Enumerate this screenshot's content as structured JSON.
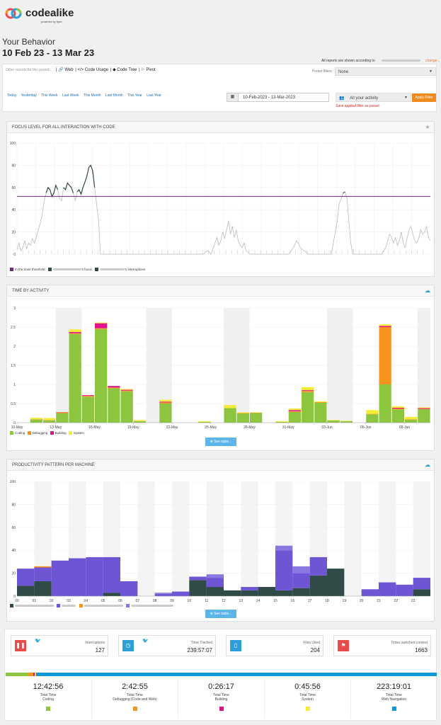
{
  "brand": {
    "name": "codealike",
    "sub": "powered by tipre"
  },
  "page": {
    "title": "Your Behavior",
    "range": "10 Feb 23 - 13 Mar 23",
    "according": "All reports are shown according to",
    "change": "change..."
  },
  "filters": {
    "other_label": "Other reports for this period...",
    "links": [
      "| 🔗 Web",
      "| </> Code Usage",
      "| ◆ Code Tree",
      "| ⚐ Pivot"
    ],
    "preset_label": "Preset filters",
    "preset_value": "None",
    "quick": [
      "Today",
      "Yesterday",
      "This Week",
      "Last Week",
      "This Month",
      "Last Month",
      "This Year",
      "Last Year"
    ],
    "date_range": "10-Feb-2023 - 13-Mar-2023",
    "activity": "All your activity",
    "apply": "Apply Filter",
    "save_preset": "Save applied filter as preset"
  },
  "focus_panel": {
    "title": "FOCUS LEVEL FOR ALL INTERACTION WITH CODE",
    "legend": [
      "In the Zone threshold",
      "'s focus",
      "'s interruptions"
    ]
  },
  "activity_panel": {
    "title": "TIME BY ACTIVITY",
    "see_table": "⊕ See table...",
    "legend": [
      "Coding",
      "Debugging",
      "Building",
      "System"
    ]
  },
  "productivity_panel": {
    "title": "PRODUCTIVITY PATTERN PER MACHINE",
    "see_table": "⊕ See table..."
  },
  "colors": {
    "coding": "#8cc63f",
    "debugging": "#f7941d",
    "building": "#e0138c",
    "system": "#f4ec35",
    "web": "#0f97d8",
    "purple": "#6e55d4",
    "dark": "#2f4a47",
    "threshold": "#6b2a7a"
  },
  "cards": [
    {
      "label": "Interruptions",
      "value": "127",
      "icon": "pause-icon",
      "color": "#e94b4b"
    },
    {
      "label": "Time Tracked",
      "value": "239:57:07",
      "icon": "clock-icon",
      "color": "#2b9fd6"
    },
    {
      "label": "Files Used",
      "value": "204",
      "icon": "file-icon",
      "color": "#2b9fd6"
    },
    {
      "label": "Times switched context",
      "value": "1663",
      "icon": "bookmark-icon",
      "color": "#e94b4b"
    }
  ],
  "totals": [
    {
      "value": "12:42:56",
      "label1": "Total Time",
      "label2": "Coding",
      "color": "#8cc63f"
    },
    {
      "value": "2:42:55",
      "label1": "Total Time",
      "label2": "Debugging (Code and Web)",
      "color": "#f7941d"
    },
    {
      "value": "0:26:17",
      "label1": "Total Time",
      "label2": "Building",
      "color": "#e0138c"
    },
    {
      "value": "0:45:56",
      "label1": "Total Time",
      "label2": "System",
      "color": "#f4ec35"
    },
    {
      "value": "223:19:01",
      "label1": "Total Time",
      "label2": "Web Navigation",
      "color": "#0f97d8"
    }
  ],
  "chart_data": [
    {
      "type": "line",
      "ylim": [
        0,
        100
      ],
      "yticks": [
        0,
        20,
        40,
        60,
        80,
        100
      ],
      "threshold": 52,
      "series": [
        {
          "name": "'s focus",
          "values": [
            4,
            10,
            3,
            6,
            12,
            5,
            10,
            8,
            14,
            10,
            16,
            22,
            28,
            35,
            48,
            55,
            60,
            58,
            52,
            55,
            62,
            58,
            50,
            48,
            60,
            58,
            64,
            62,
            60,
            55,
            48,
            56,
            58,
            54,
            60,
            65,
            70,
            78,
            80,
            75,
            60,
            45,
            30,
            0,
            0,
            0,
            0,
            0,
            0,
            0,
            0,
            0,
            0,
            0,
            0,
            0,
            0,
            0,
            0,
            0,
            0,
            0,
            0,
            0,
            0,
            0,
            0,
            0,
            0,
            0,
            0,
            0,
            0,
            0,
            0,
            0,
            0,
            0,
            0,
            0,
            0,
            0,
            0,
            0,
            0,
            0,
            0,
            0,
            0,
            0,
            0,
            0,
            0,
            0,
            0,
            0,
            0,
            2,
            3,
            2,
            0,
            5,
            10,
            15,
            8,
            12,
            20,
            14,
            22,
            30,
            18,
            25,
            15,
            22,
            12,
            8,
            6,
            10,
            3,
            2,
            0,
            0,
            0,
            0,
            0,
            0,
            0,
            0,
            0,
            0,
            0,
            0,
            0,
            0,
            0,
            0,
            0,
            0,
            0,
            0,
            0,
            2,
            5,
            8,
            12,
            10,
            6,
            4,
            3,
            2,
            0,
            0,
            0,
            0,
            0,
            0,
            0,
            0,
            0,
            0,
            0,
            0,
            0,
            10,
            20,
            30,
            45,
            50,
            55,
            56,
            50,
            30,
            10,
            0,
            0,
            0,
            0,
            0,
            0,
            0,
            0,
            0,
            0,
            0,
            0,
            0,
            0,
            0,
            0,
            3,
            6,
            12,
            18,
            15,
            10,
            15,
            8,
            12,
            20,
            10,
            6,
            14,
            22,
            25,
            18,
            12,
            10,
            14,
            22,
            18,
            20,
            25,
            15,
            12
          ]
        },
        {
          "name": "In the Zone threshold",
          "values": [
            52
          ]
        }
      ]
    },
    {
      "type": "bar",
      "stacked": true,
      "ylim": [
        0,
        3.0
      ],
      "yticks": [
        0,
        0.5,
        1.0,
        1.5,
        2.0,
        2.5,
        3.0
      ],
      "xticks": [
        "10-May",
        "13-May",
        "16-May",
        "19-May",
        "22-May",
        "25-May",
        "28-May",
        "31-May",
        "03-Jun",
        "06-Jun",
        "09-Jun",
        "12-Jun"
      ],
      "series": [
        {
          "name": "Coding",
          "values": [
            0,
            0.08,
            0.06,
            0.25,
            2.32,
            0.68,
            2.45,
            0.9,
            0.82,
            0.04,
            0,
            0.5,
            0,
            0,
            0.02,
            0,
            0.38,
            0.24,
            0.25,
            0,
            0.02,
            0.28,
            0.8,
            0.52,
            0.06,
            0.04,
            0,
            0.22,
            1.0,
            0.35,
            0.08,
            0.35
          ]
        },
        {
          "name": "Debugging",
          "values": [
            0,
            0.01,
            0.01,
            0.01,
            0.02,
            0.02,
            0.02,
            0.02,
            0.02,
            0,
            0,
            0.03,
            0,
            0,
            0,
            0,
            0,
            0.01,
            0.01,
            0,
            0,
            0.02,
            0.03,
            0.02,
            0,
            0,
            0,
            0.01,
            1.5,
            0.02,
            0.01,
            0.01
          ]
        },
        {
          "name": "Building",
          "values": [
            0,
            0,
            0,
            0.01,
            0.03,
            0.02,
            0.13,
            0.04,
            0.02,
            0,
            0,
            0.02,
            0,
            0,
            0,
            0,
            0,
            0,
            0,
            0,
            0,
            0.03,
            0.02,
            0,
            0,
            0,
            0,
            0,
            0.03,
            0.02,
            0,
            0.02
          ]
        },
        {
          "name": "System",
          "values": [
            0,
            0.04,
            0.05,
            0.01,
            0.07,
            0,
            0.02,
            0,
            0.02,
            0.03,
            0,
            0.05,
            0,
            0,
            0.02,
            0,
            0.08,
            0.02,
            0.01,
            0,
            0.02,
            0.04,
            0.08,
            0.02,
            0.01,
            0.01,
            0,
            0.1,
            0.04,
            0.04,
            0.06,
            0.02
          ]
        }
      ]
    },
    {
      "type": "bar",
      "stacked": true,
      "ylim": [
        0,
        100
      ],
      "yticks": [
        0,
        20,
        40,
        60,
        80,
        100
      ],
      "categories": [
        "00",
        "01",
        "02",
        "03",
        "04",
        "05",
        "06",
        "07",
        "08",
        "09",
        "10",
        "11",
        "12",
        "13",
        "14",
        "15",
        "16",
        "17",
        "18",
        "19",
        "20",
        "21",
        "22",
        "23"
      ],
      "series": [
        {
          "name": "machine-1",
          "values": [
            9,
            13,
            0,
            0,
            0,
            3,
            0,
            0,
            0,
            0,
            14,
            8,
            5,
            5,
            8,
            5,
            7,
            18,
            24,
            0,
            0,
            0,
            0,
            6
          ]
        },
        {
          "name": "machine-2",
          "values": [
            15,
            12,
            31,
            33,
            34,
            31,
            13,
            0,
            2,
            4,
            3,
            8,
            0,
            3,
            0,
            35,
            13,
            16,
            0,
            0,
            6,
            12,
            10,
            10
          ]
        },
        {
          "name": "machine-3",
          "values": [
            0,
            1,
            0,
            0,
            0,
            0,
            0,
            0,
            0,
            0,
            0,
            0,
            0,
            0,
            0,
            0,
            0,
            0,
            0,
            0,
            0,
            0,
            0,
            0
          ]
        },
        {
          "name": "machine-4",
          "values": [
            0,
            0,
            0,
            0,
            0,
            0,
            0,
            0,
            1,
            0,
            0,
            3,
            0,
            0,
            0,
            4,
            6,
            0,
            0,
            0,
            0,
            0,
            0,
            0
          ]
        }
      ]
    }
  ]
}
